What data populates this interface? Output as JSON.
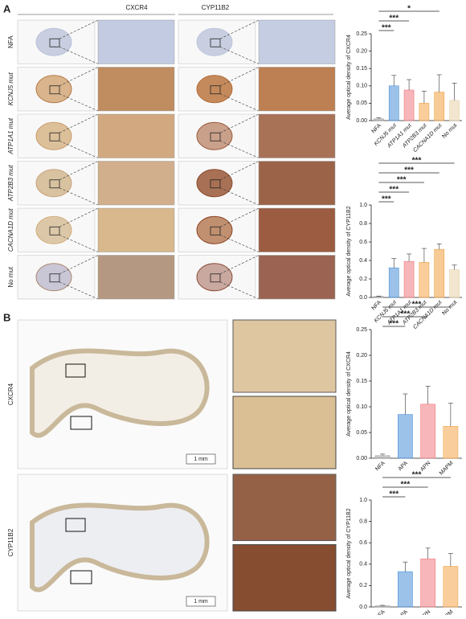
{
  "panel_a": {
    "label": "A",
    "columns": [
      "CXCR4",
      "CYP11B2"
    ],
    "rows": [
      "NFA",
      "KCNJ5 mut",
      "ATP1A1 mut",
      "ATP2B3 mut",
      "CACNA1D mut",
      "No mut"
    ]
  },
  "panel_b": {
    "label": "B",
    "rows": [
      "CXCR4",
      "CYP11B2"
    ],
    "scale": "1 mm"
  },
  "chart_data": [
    {
      "type": "bar",
      "ylabel": "Average optical density of CXCR4",
      "categories": [
        "NFA",
        "KCNJ5 mut",
        "ATP1A1 mut",
        "ATP2B3 mut",
        "CACNA1D mut",
        "No mut"
      ],
      "values": [
        0.005,
        0.1,
        0.088,
        0.05,
        0.082,
        0.058
      ],
      "errors": [
        0.003,
        0.03,
        0.03,
        0.035,
        0.05,
        0.05
      ],
      "colors": [
        "#9e9e9e",
        "#4a90d9",
        "#f07a80",
        "#f5a54a",
        "#f0a040",
        "#e8d2a8"
      ],
      "ylim": [
        0,
        0.25
      ],
      "yticks": [
        {
          "value": 0,
          "label": "0.00"
        },
        {
          "value": 0.05,
          "label": "0.05"
        },
        {
          "value": 0.1,
          "label": "0.10"
        },
        {
          "value": 0.15,
          "label": "0.15"
        },
        {
          "value": 0.2,
          "label": "0.20"
        },
        {
          "value": 0.25,
          "label": "0.25"
        }
      ],
      "annotations": [
        {
          "text": "***",
          "between": [
            "NFA",
            "KCNJ5 mut"
          ]
        },
        {
          "text": "***",
          "between": [
            "NFA",
            "ATP1A1 mut"
          ]
        },
        {
          "text": "*",
          "between": [
            "NFA",
            "CACNA1D mut"
          ]
        }
      ]
    },
    {
      "type": "bar",
      "ylabel": "Average optical density of CYP11B2",
      "categories": [
        "NFA",
        "KCNJ5 mut",
        "ATP1A1 mut",
        "ATP2B3 mut",
        "CACNA1D mut",
        "No mut"
      ],
      "values": [
        0.01,
        0.32,
        0.39,
        0.38,
        0.52,
        0.3
      ],
      "errors": [
        0.005,
        0.1,
        0.08,
        0.15,
        0.06,
        0.05
      ],
      "colors": [
        "#9e9e9e",
        "#4a90d9",
        "#f07a80",
        "#f5a54a",
        "#f0a040",
        "#e8d2a8"
      ],
      "ylim": [
        0,
        1.0
      ],
      "yticks": [
        {
          "value": 0,
          "label": "0.0"
        },
        {
          "value": 0.2,
          "label": "0.2"
        },
        {
          "value": 0.4,
          "label": "0.4"
        },
        {
          "value": 0.6,
          "label": "0.6"
        },
        {
          "value": 0.8,
          "label": "0.8"
        },
        {
          "value": 1.0,
          "label": "1.0"
        }
      ],
      "annotations": [
        {
          "text": "***",
          "between": [
            "NFA",
            "KCNJ5 mut"
          ]
        },
        {
          "text": "***",
          "between": [
            "NFA",
            "ATP1A1 mut"
          ]
        },
        {
          "text": "***",
          "between": [
            "NFA",
            "ATP2B3 mut"
          ]
        },
        {
          "text": "***",
          "between": [
            "NFA",
            "CACNA1D mut"
          ]
        },
        {
          "text": "***",
          "between": [
            "NFA",
            "No mut"
          ]
        }
      ]
    },
    {
      "type": "bar",
      "ylabel": "Average optical density of CXCR4",
      "categories": [
        "NFA",
        "APA",
        "APN",
        "MAPM"
      ],
      "values": [
        0.005,
        0.085,
        0.105,
        0.062
      ],
      "errors": [
        0.003,
        0.04,
        0.035,
        0.045
      ],
      "colors": [
        "#9e9e9e",
        "#4a90d9",
        "#f07a80",
        "#f5a54a"
      ],
      "ylim": [
        0,
        0.25
      ],
      "yticks": [
        {
          "value": 0,
          "label": "0.00"
        },
        {
          "value": 0.05,
          "label": "0.05"
        },
        {
          "value": 0.1,
          "label": "0.10"
        },
        {
          "value": 0.15,
          "label": "0.15"
        },
        {
          "value": 0.2,
          "label": "0.20"
        },
        {
          "value": 0.25,
          "label": "0.25"
        }
      ],
      "annotations": [
        {
          "text": "***",
          "between": [
            "NFA",
            "APA"
          ]
        },
        {
          "text": "***",
          "between": [
            "NFA",
            "APN"
          ]
        },
        {
          "text": "***",
          "between": [
            "NFA",
            "MAPM"
          ]
        }
      ]
    },
    {
      "type": "bar",
      "ylabel": "Average optical density of CYP11B2",
      "categories": [
        "NFA",
        "APA",
        "APN",
        "MAPM"
      ],
      "values": [
        0.01,
        0.33,
        0.45,
        0.38
      ],
      "errors": [
        0.005,
        0.09,
        0.1,
        0.12
      ],
      "colors": [
        "#9e9e9e",
        "#4a90d9",
        "#f07a80",
        "#f5a54a"
      ],
      "ylim": [
        0,
        1.0
      ],
      "yticks": [
        {
          "value": 0,
          "label": "0.0"
        },
        {
          "value": 0.2,
          "label": "0.2"
        },
        {
          "value": 0.4,
          "label": "0.4"
        },
        {
          "value": 0.6,
          "label": "0.6"
        },
        {
          "value": 0.8,
          "label": "0.8"
        },
        {
          "value": 1.0,
          "label": "1.0"
        }
      ],
      "annotations": [
        {
          "text": "***",
          "between": [
            "NFA",
            "APA"
          ]
        },
        {
          "text": "***",
          "between": [
            "NFA",
            "APN"
          ]
        },
        {
          "text": "***",
          "between": [
            "NFA",
            "MAPM"
          ]
        }
      ]
    }
  ]
}
